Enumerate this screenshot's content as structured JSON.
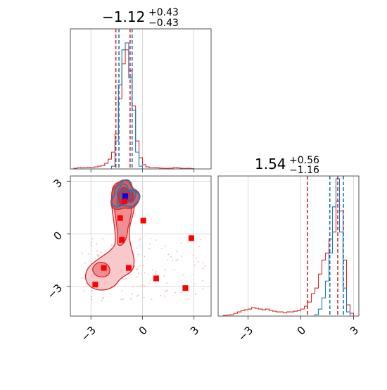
{
  "colors": {
    "red": "#d62728",
    "blue": "#1f77b4",
    "grid": "#d0d0d0",
    "axis": "#555555",
    "marker_red": "#ff0000",
    "marker_blue": "#0000ff"
  },
  "chart_data": [
    {
      "type": "histogram",
      "panel": "top-left",
      "title": {
        "value": "−1.12",
        "upper": "+0.43",
        "lower": "−0.43"
      },
      "xlim": [
        -4.2,
        4.0
      ],
      "ylim": [
        0,
        1.0
      ],
      "grid": true,
      "x_ticks": [
        -3,
        0,
        3
      ],
      "show_tick_labels": false,
      "quantile_lines": {
        "red": [
          -1.55,
          -0.72
        ],
        "blue": [
          -1.37,
          -0.6
        ]
      },
      "series": [
        {
          "color": "red",
          "bin_edges": [
            -4.0,
            -3.8,
            -3.6,
            -3.4,
            -3.2,
            -3.0,
            -2.8,
            -2.6,
            -2.4,
            -2.2,
            -2.0,
            -1.8,
            -1.6,
            -1.4,
            -1.2,
            -1.0,
            -0.8,
            -0.6,
            -0.4,
            -0.2,
            0.0,
            0.2,
            0.4,
            0.6,
            0.8,
            1.0,
            1.2,
            1.4,
            1.6,
            1.8,
            2.0,
            2.2,
            2.4,
            2.6,
            2.8,
            3.0
          ],
          "heights": [
            0.005,
            0.01,
            0.008,
            0.01,
            0.012,
            0.01,
            0.015,
            0.02,
            0.025,
            0.04,
            0.07,
            0.12,
            0.25,
            0.5,
            0.75,
            0.85,
            0.7,
            0.45,
            0.2,
            0.08,
            0.03,
            0.015,
            0.01,
            0.01,
            0.008,
            0.006,
            0.005,
            0.005,
            0.006,
            0.01,
            0.008,
            0.005,
            0.004,
            0.005,
            0.003
          ]
        },
        {
          "color": "blue",
          "bin_edges": [
            -2.0,
            -1.8,
            -1.6,
            -1.4,
            -1.2,
            -1.0,
            -0.8,
            -0.6,
            -0.4,
            -0.2,
            0.0
          ],
          "heights": [
            0.0,
            0.02,
            0.2,
            0.6,
            0.85,
            0.9,
            0.65,
            0.42,
            0.12,
            0.02
          ]
        }
      ]
    },
    {
      "type": "scatter-contour",
      "panel": "bottom-left",
      "xlim": [
        -4.2,
        4.0
      ],
      "ylim": [
        -4.7,
        3.3
      ],
      "grid": true,
      "x_ticks": [
        -3,
        0,
        3
      ],
      "y_ticks": [
        -3,
        0,
        3
      ],
      "x_tick_labels": [
        "−3",
        "0",
        "3"
      ],
      "y_tick_labels": [
        "−3",
        "0",
        "3"
      ],
      "red_markers": [
        {
          "x": -1.0,
          "y": 2.1
        },
        {
          "x": -1.05,
          "y": 1.85
        },
        {
          "x": -1.3,
          "y": 0.9
        },
        {
          "x": 0.05,
          "y": 0.75
        },
        {
          "x": -1.2,
          "y": -0.35
        },
        {
          "x": 2.85,
          "y": -0.25
        },
        {
          "x": -2.25,
          "y": -1.95
        },
        {
          "x": -0.8,
          "y": -1.95
        },
        {
          "x": 0.8,
          "y": -2.55
        },
        {
          "x": -2.75,
          "y": -2.9
        },
        {
          "x": 2.5,
          "y": -3.1
        }
      ],
      "blue_markers": [
        {
          "x": -1.0,
          "y": 2.15
        }
      ]
    },
    {
      "type": "histogram",
      "panel": "bottom-right",
      "title": {
        "value": "1.54",
        "upper": "+0.56",
        "lower": "−1.16"
      },
      "xlim": [
        -4.7,
        3.3
      ],
      "ylim": [
        0,
        1.0
      ],
      "grid": true,
      "x_ticks": [
        -3,
        0,
        3
      ],
      "x_tick_labels": [
        "−3",
        "0",
        "3"
      ],
      "quantile_lines": {
        "red": [
          0.38,
          2.1
        ],
        "blue": [
          1.65,
          2.42
        ]
      },
      "series": [
        {
          "color": "red",
          "bin_edges": [
            -4.4,
            -4.2,
            -4.0,
            -3.8,
            -3.6,
            -3.4,
            -3.2,
            -3.0,
            -2.8,
            -2.6,
            -2.4,
            -2.2,
            -2.0,
            -1.8,
            -1.6,
            -1.4,
            -1.2,
            -1.0,
            -0.8,
            -0.6,
            -0.4,
            -0.2,
            0.0,
            0.2,
            0.4,
            0.6,
            0.8,
            1.0,
            1.2,
            1.4,
            1.6,
            1.8,
            2.0,
            2.2,
            2.4,
            2.6,
            2.8,
            3.0
          ],
          "heights": [
            0.005,
            0.008,
            0.01,
            0.02,
            0.03,
            0.04,
            0.045,
            0.05,
            0.06,
            0.055,
            0.05,
            0.045,
            0.05,
            0.04,
            0.035,
            0.03,
            0.03,
            0.025,
            0.03,
            0.03,
            0.035,
            0.04,
            0.05,
            0.07,
            0.1,
            0.16,
            0.2,
            0.3,
            0.4,
            0.45,
            0.55,
            0.6,
            0.82,
            0.75,
            0.4,
            0.08,
            0.02
          ]
        },
        {
          "color": "blue",
          "bin_edges": [
            0.8,
            1.0,
            1.2,
            1.4,
            1.6,
            1.8,
            2.0,
            2.2,
            2.4,
            2.6,
            2.8
          ],
          "heights": [
            0.01,
            0.05,
            0.13,
            0.25,
            0.45,
            0.78,
            0.98,
            0.6,
            0.2,
            0.03
          ]
        }
      ]
    }
  ]
}
